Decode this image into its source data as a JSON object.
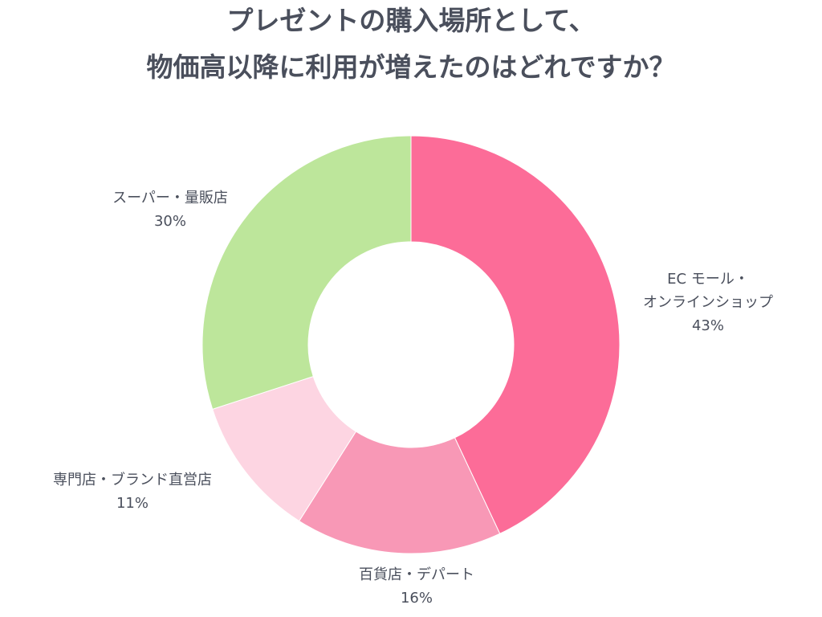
{
  "chart_data": {
    "type": "pie",
    "title_lines": [
      "プレゼントの購入場所として、",
      "物価高以降に利用が増えたのはどれですか？"
    ],
    "slices": [
      {
        "label_lines": [
          "EC モール・",
          "オンラインショップ"
        ],
        "value": 43,
        "value_label": "43%",
        "color": "#fc6c98"
      },
      {
        "label_lines": [
          "百貨店・デパート"
        ],
        "value": 16,
        "value_label": "16%",
        "color": "#f898b6"
      },
      {
        "label_lines": [
          "専門店・ブランド直営店"
        ],
        "value": 11,
        "value_label": "11%",
        "color": "#fdd5e2"
      },
      {
        "label_lines": [
          "スーパー・量販店"
        ],
        "value": 30,
        "value_label": "30%",
        "color": "#bde69b"
      }
    ],
    "donut": true,
    "legend": "none"
  }
}
